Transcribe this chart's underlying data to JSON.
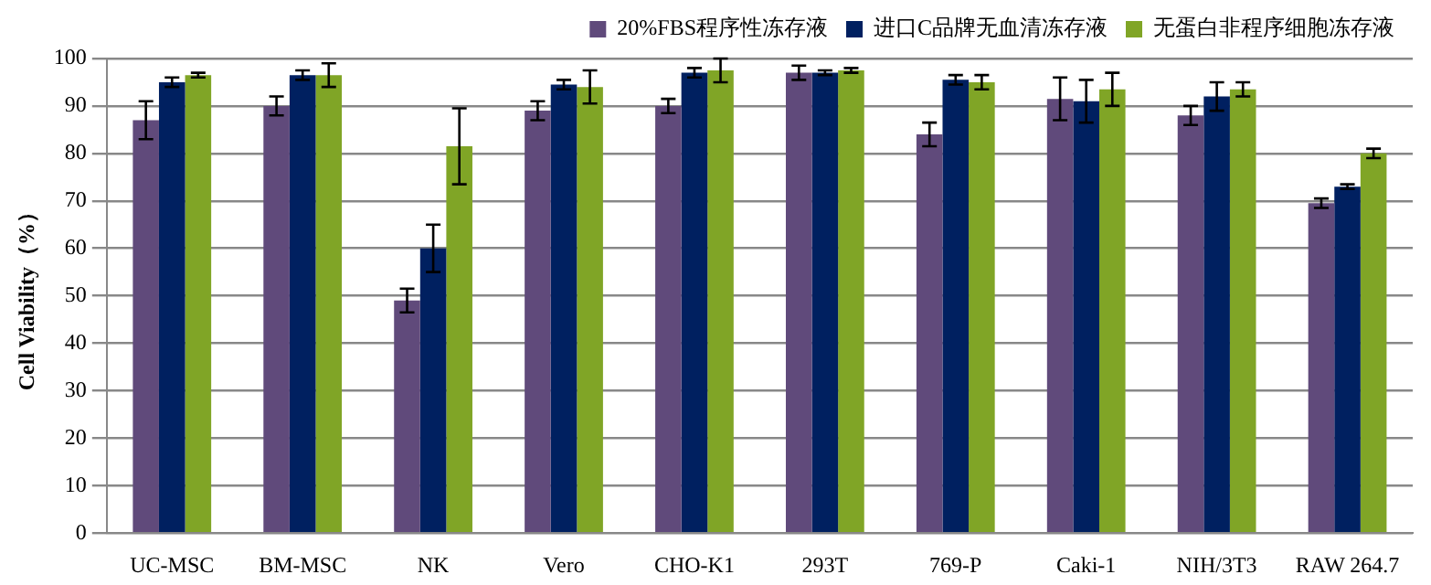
{
  "chart_data": {
    "type": "bar",
    "ylabel": "Cell Viability（%）",
    "categories": [
      "UC-MSC",
      "BM-MSC",
      "NK",
      "Vero",
      "CHO-K1",
      "293T",
      "769-P",
      "Caki-1",
      "NIH/3T3",
      "RAW 264.7"
    ],
    "series": [
      {
        "name": "20%FBS程序性冻存液",
        "color": "#604a7b",
        "values": [
          87,
          90,
          49,
          89,
          90,
          97,
          84,
          91.5,
          88,
          69.5
        ],
        "errors": [
          4,
          2,
          2.5,
          2,
          1.5,
          1.5,
          2.5,
          4.5,
          2,
          1
        ]
      },
      {
        "name": "进口C品牌无血清冻存液",
        "color": "#002060",
        "values": [
          95,
          96.5,
          60,
          94.5,
          97,
          97,
          95.5,
          91,
          92,
          73
        ],
        "errors": [
          1,
          1,
          5,
          1,
          1,
          0.5,
          1,
          4.5,
          3,
          0.5
        ]
      },
      {
        "name": "无蛋白非程序细胞冻存液",
        "color": "#80a526",
        "values": [
          96.5,
          96.5,
          81.5,
          94,
          97.5,
          97.5,
          95,
          93.5,
          93.5,
          80
        ],
        "errors": [
          0.5,
          2.5,
          8,
          3.5,
          2.5,
          0.5,
          1.5,
          3.5,
          1.5,
          1
        ]
      }
    ],
    "ylim": [
      0,
      100
    ],
    "yticks": [
      0,
      10,
      20,
      30,
      40,
      50,
      60,
      70,
      80,
      90,
      100
    ],
    "grid": "y",
    "legend": "top right"
  }
}
